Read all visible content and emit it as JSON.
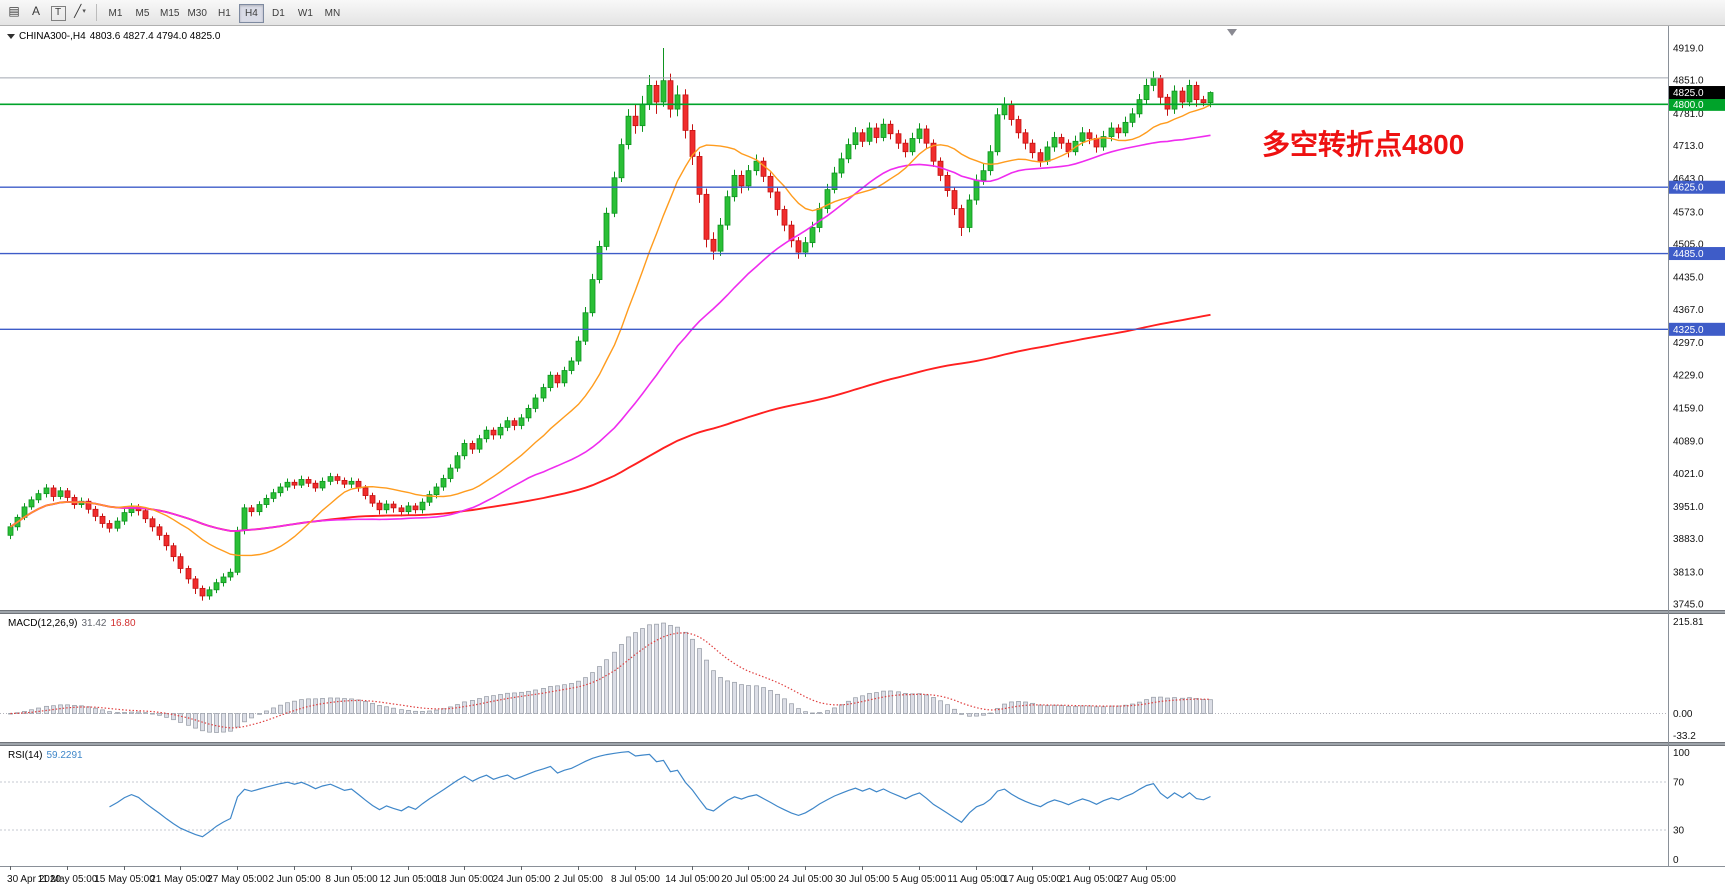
{
  "toolbar": {
    "icons": [
      {
        "name": "charts-grid-icon",
        "glyph": "▤"
      },
      {
        "name": "cursor-tool-icon",
        "glyph": "A"
      },
      {
        "name": "text-label-tool-icon",
        "glyph": "T",
        "boxed": true
      },
      {
        "name": "line-draw-tool-icon",
        "glyph": "╱",
        "caret": "▾"
      }
    ],
    "timeframes": [
      "M1",
      "M5",
      "M15",
      "M30",
      "H1",
      "H4",
      "D1",
      "W1",
      "MN"
    ],
    "active_timeframe": "H4"
  },
  "chart": {
    "symbol_label": "CHINA300-,H4",
    "ohlc_label": "4803.6 4827.4 4794.0 4825.0",
    "annotation": {
      "text": "多空转折点4800",
      "color": "#ee1111"
    },
    "price_ticks": [
      4919,
      4851,
      4781,
      4713,
      4643,
      4573,
      4505,
      4435,
      4367,
      4297,
      4229,
      4159,
      4089,
      4021,
      3951,
      3883,
      3813,
      3745
    ],
    "current_price": {
      "price": 4825.0,
      "label": "4825.0",
      "label_bg": "#000000"
    },
    "levels": [
      {
        "price": 4856,
        "color": "#a2a6b0",
        "width": 1,
        "label": null,
        "label_bg": null
      },
      {
        "price": 4800,
        "color": "#00a32a",
        "width": 1.6,
        "label": "4800.0",
        "label_bg": "#00a32a"
      },
      {
        "price": 4625,
        "color": "#3e5cc8",
        "width": 1.4,
        "label": "4625.0",
        "label_bg": "#3e5cc8"
      },
      {
        "price": 4485,
        "color": "#3e5cc8",
        "width": 1.4,
        "label": "4485.0",
        "label_bg": "#3e5cc8"
      },
      {
        "price": 4325,
        "color": "#3e5cc8",
        "width": 1.4,
        "label": "4325.0",
        "label_bg": "#3e5cc8"
      }
    ],
    "time_labels": [
      "30 Apr 2020",
      "11 May 05:00",
      "15 May 05:00",
      "21 May 05:00",
      "27 May 05:00",
      "2 Jun 05:00",
      "8 Jun 05:00",
      "12 Jun 05:00",
      "18 Jun 05:00",
      "24 Jun 05:00",
      "2 Jul 05:00",
      "8 Jul 05:00",
      "14 Jul 05:00",
      "20 Jul 05:00",
      "24 Jul 05:00",
      "30 Jul 05:00",
      "5 Aug 05:00",
      "11 Aug 05:00",
      "17 Aug 05:00",
      "21 Aug 05:00",
      "27 Aug 05:00"
    ],
    "time_label_step": 8,
    "colors": {
      "bull_fill": "#2abf36",
      "bull_stroke": "#0e9420",
      "bear_fill": "#f02c2c",
      "bear_stroke": "#c51212",
      "ma_fast": "#ff9c1e",
      "ma_mid": "#ef2cef",
      "ma_slow": "#ff2020",
      "macd_hist_fill": "#dcdee6",
      "macd_hist_stroke": "#9298a2",
      "macd_signal": "#e04040",
      "rsi_line": "#3f87c9",
      "level_dotted": "#c4c8d0",
      "scale_text": "#111111"
    }
  },
  "chart_data": {
    "type": "candlestick",
    "symbol": "CHINA300-",
    "timeframe": "H4",
    "ylim": [
      3733,
      4940
    ],
    "first_open": 3890,
    "closes": [
      3908,
      3928,
      3950,
      3965,
      3978,
      3990,
      3972,
      3984,
      3970,
      3955,
      3962,
      3945,
      3930,
      3915,
      3905,
      3920,
      3938,
      3950,
      3942,
      3925,
      3908,
      3890,
      3868,
      3845,
      3820,
      3798,
      3778,
      3762,
      3775,
      3790,
      3802,
      3812,
      3900,
      3948,
      3940,
      3955,
      3968,
      3980,
      3992,
      4002,
      3996,
      4008,
      4000,
      3990,
      4004,
      4014,
      4006,
      3998,
      4004,
      3990,
      3974,
      3958,
      3944,
      3956,
      3948,
      3940,
      3952,
      3944,
      3960,
      3976,
      3992,
      4010,
      4032,
      4058,
      4084,
      4072,
      4094,
      4112,
      4102,
      4118,
      4132,
      4122,
      4138,
      4158,
      4180,
      4202,
      4228,
      4212,
      4238,
      4258,
      4300,
      4360,
      4430,
      4500,
      4570,
      4645,
      4715,
      4775,
      4755,
      4800,
      4840,
      4805,
      4850,
      4790,
      4820,
      4745,
      4690,
      4610,
      4515,
      4490,
      4545,
      4605,
      4650,
      4628,
      4660,
      4680,
      4648,
      4615,
      4578,
      4545,
      4512,
      4488,
      4508,
      4540,
      4580,
      4620,
      4655,
      4685,
      4715,
      4740,
      4722,
      4750,
      4730,
      4758,
      4738,
      4718,
      4700,
      4728,
      4748,
      4718,
      4680,
      4650,
      4618,
      4580,
      4540,
      4598,
      4640,
      4660,
      4700,
      4778,
      4800,
      4768,
      4740,
      4718,
      4698,
      4680,
      4710,
      4730,
      4718,
      4700,
      4722,
      4740,
      4728,
      4710,
      4732,
      4750,
      4740,
      4762,
      4780,
      4810,
      4840,
      4855,
      4815,
      4790,
      4828,
      4805,
      4840,
      4810,
      4803.6,
      4825
    ],
    "highs": [
      3916,
      3934,
      3958,
      3972,
      3986,
      3998,
      3996,
      3992,
      3990,
      3976,
      3970,
      3968,
      3952,
      3936,
      3922,
      3928,
      3946,
      3958,
      3956,
      3948,
      3930,
      3914,
      3896,
      3874,
      3852,
      3826,
      3804,
      3784,
      3782,
      3798,
      3810,
      3820,
      3908,
      3956,
      3954,
      3962,
      3976,
      3988,
      4000,
      4010,
      4008,
      4016,
      4014,
      4006,
      4012,
      4022,
      4020,
      4012,
      4012,
      4010,
      3996,
      3980,
      3964,
      3964,
      3962,
      3954,
      3960,
      3958,
      3968,
      3984,
      4000,
      4018,
      4040,
      4066,
      4092,
      4090,
      4102,
      4120,
      4118,
      4126,
      4140,
      4138,
      4146,
      4166,
      4188,
      4210,
      4236,
      4234,
      4246,
      4266,
      4310,
      4372,
      4442,
      4512,
      4582,
      4658,
      4728,
      4790,
      4800,
      4818,
      4862,
      4850,
      4919,
      4865,
      4840,
      4832,
      4758,
      4700,
      4622,
      4530,
      4560,
      4618,
      4662,
      4660,
      4672,
      4694,
      4688,
      4656,
      4624,
      4586,
      4554,
      4520,
      4520,
      4552,
      4592,
      4632,
      4668,
      4698,
      4728,
      4752,
      4748,
      4762,
      4760,
      4770,
      4766,
      4746,
      4726,
      4740,
      4760,
      4756,
      4726,
      4688,
      4658,
      4626,
      4588,
      4610,
      4652,
      4674,
      4714,
      4792,
      4815,
      4808,
      4776,
      4748,
      4726,
      4706,
      4722,
      4742,
      4738,
      4726,
      4734,
      4752,
      4748,
      4736,
      4744,
      4762,
      4758,
      4774,
      4792,
      4822,
      4854,
      4870,
      4862,
      4822,
      4840,
      4836,
      4852,
      4848,
      4818,
      4827.4
    ],
    "lows": [
      3882,
      3900,
      3922,
      3944,
      3958,
      3970,
      3962,
      3966,
      3960,
      3946,
      3948,
      3936,
      3920,
      3906,
      3896,
      3898,
      3912,
      3930,
      3932,
      3916,
      3898,
      3880,
      3858,
      3835,
      3810,
      3788,
      3766,
      3752,
      3754,
      3768,
      3782,
      3794,
      3806,
      3892,
      3930,
      3932,
      3948,
      3960,
      3972,
      3984,
      3988,
      3990,
      3992,
      3982,
      3984,
      3996,
      3998,
      3990,
      3990,
      3982,
      3966,
      3950,
      3934,
      3936,
      3938,
      3930,
      3932,
      3936,
      3936,
      3952,
      3968,
      3984,
      4002,
      4024,
      4050,
      4062,
      4064,
      4086,
      4092,
      4094,
      4110,
      4112,
      4114,
      4130,
      4150,
      4172,
      4194,
      4202,
      4204,
      4230,
      4250,
      4292,
      4352,
      4422,
      4492,
      4562,
      4636,
      4705,
      4738,
      4742,
      4788,
      4780,
      4795,
      4772,
      4775,
      4728,
      4672,
      4592,
      4498,
      4472,
      4480,
      4535,
      4595,
      4612,
      4618,
      4650,
      4636,
      4602,
      4565,
      4532,
      4498,
      4474,
      4478,
      4498,
      4530,
      4570,
      4612,
      4645,
      4676,
      4705,
      4710,
      4714,
      4718,
      4722,
      4726,
      4706,
      4688,
      4692,
      4718,
      4706,
      4668,
      4638,
      4605,
      4566,
      4522,
      4530,
      4588,
      4630,
      4650,
      4692,
      4768,
      4755,
      4728,
      4705,
      4686,
      4668,
      4672,
      4700,
      4706,
      4688,
      4692,
      4712,
      4716,
      4698,
      4702,
      4722,
      4728,
      4732,
      4752,
      4772,
      4800,
      4828,
      4800,
      4776,
      4780,
      4792,
      4796,
      4795,
      4796,
      4794
    ],
    "moving_averages": [
      {
        "name": "ma-fast",
        "period": 16,
        "color": "#ff9c1e",
        "width": 1.4
      },
      {
        "name": "ma-mid",
        "period": 42,
        "color": "#ef2cef",
        "width": 1.6
      },
      {
        "name": "ma-slow",
        "period": 170,
        "color": "#ff2020",
        "width": 1.9
      }
    ]
  },
  "macd": {
    "label": "MACD(12,26,9)",
    "value_main": "31.42",
    "value_signal": "16.80",
    "axis_labels": [
      "215.81",
      "0.00",
      "-33.2"
    ]
  },
  "rsi": {
    "label": "RSI(14)",
    "value": "59.2291",
    "axis_labels": [
      "100",
      "70",
      "30",
      "0"
    ],
    "levels": [
      70,
      30
    ]
  }
}
